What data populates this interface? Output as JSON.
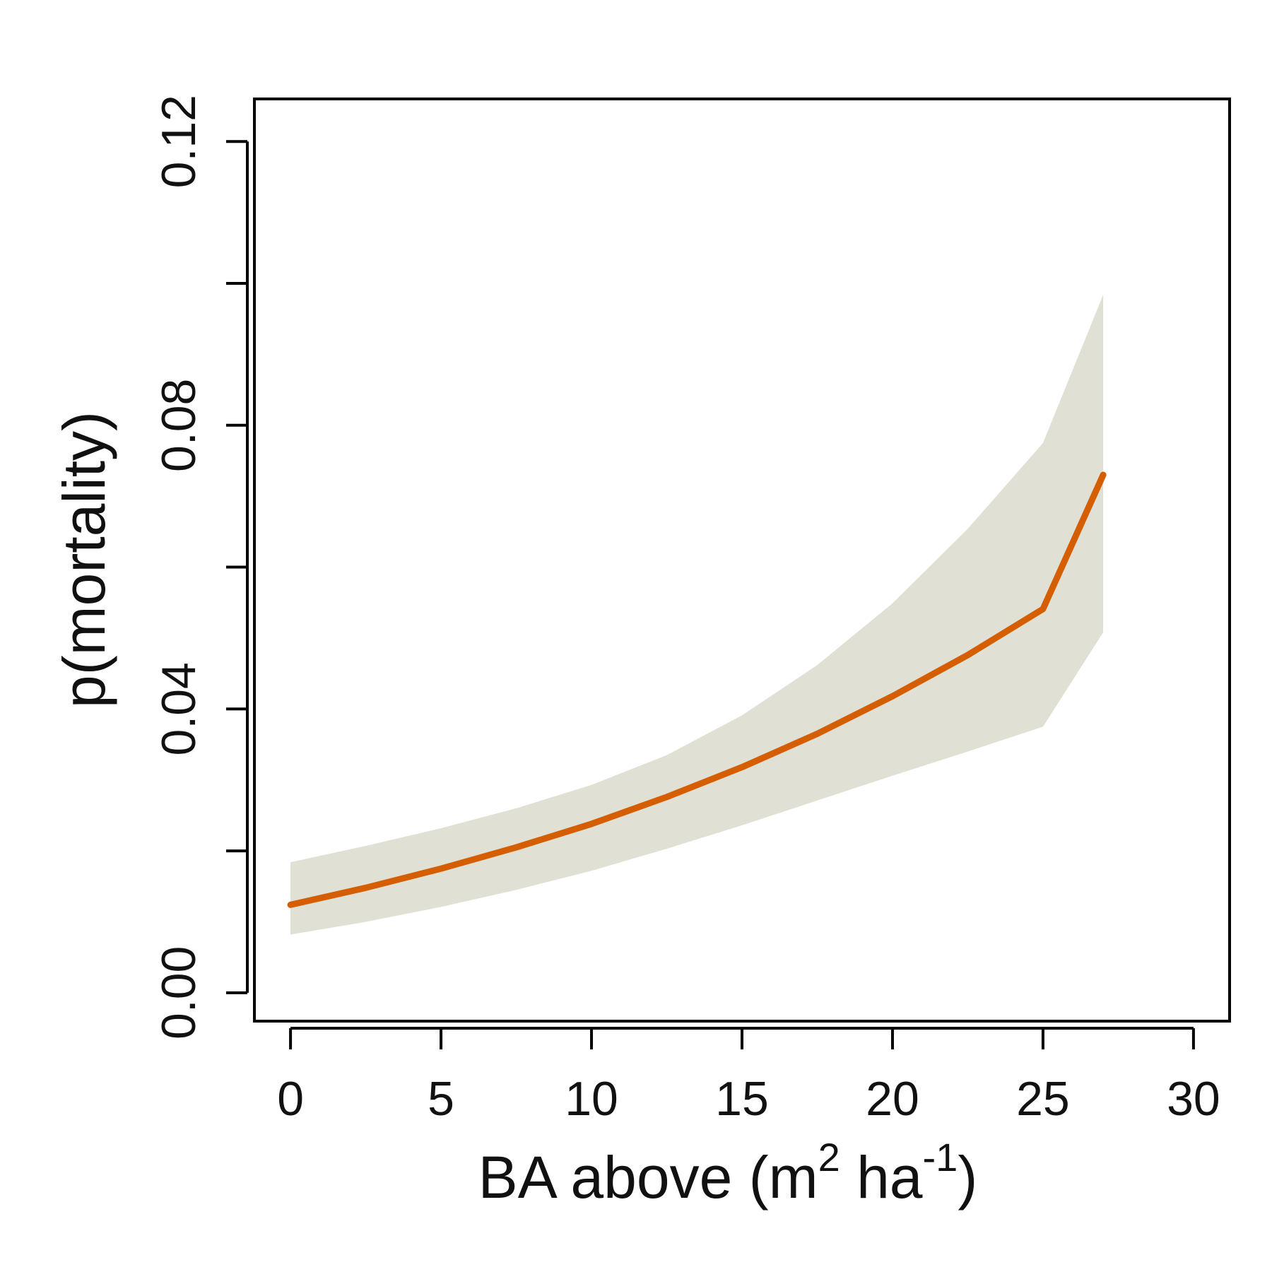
{
  "chart_data": {
    "type": "line",
    "title": "",
    "xlabel": {
      "prefix": "BA above (m",
      "sup1": "2",
      "middle": " ha",
      "sup2": "-1",
      "suffix": ")"
    },
    "ylabel": "p(mortality)",
    "xlim": [
      -1.2,
      31.2
    ],
    "ylim": [
      -0.004,
      0.126
    ],
    "x_ticks": [
      0,
      5,
      10,
      15,
      20,
      25,
      30
    ],
    "x_tick_labels": [
      "0",
      "5",
      "10",
      "15",
      "20",
      "25",
      "30"
    ],
    "y_ticks": [
      0.0,
      0.02,
      0.04,
      0.06,
      0.08,
      0.1,
      0.12
    ],
    "y_tick_labels": [
      "0.00",
      "",
      "0.04",
      "",
      "0.08",
      "",
      "0.12"
    ],
    "grid": false,
    "legend": "none",
    "series": [
      {
        "x": [
          0,
          2.5,
          5,
          7.5,
          10,
          12.5,
          15,
          17.5,
          20,
          22.5,
          25,
          27
        ],
        "y": [
          0.0124,
          0.0148,
          0.0175,
          0.0205,
          0.0238,
          0.0276,
          0.0318,
          0.0365,
          0.0418,
          0.0476,
          0.0541,
          0.073
        ],
        "color": "#d55e00"
      }
    ],
    "band": {
      "x": [
        0,
        2.5,
        5,
        7.5,
        10,
        12.5,
        15,
        17.5,
        20,
        22.5,
        25,
        27
      ],
      "lower": [
        0.0082,
        0.01,
        0.0121,
        0.0145,
        0.0172,
        0.0203,
        0.0236,
        0.0271,
        0.0306,
        0.034,
        0.0375,
        0.0508
      ],
      "upper": [
        0.0184,
        0.0207,
        0.0232,
        0.026,
        0.0293,
        0.0335,
        0.0391,
        0.0462,
        0.0549,
        0.0654,
        0.0775,
        0.0984
      ],
      "color": "#e1e0d4"
    }
  }
}
